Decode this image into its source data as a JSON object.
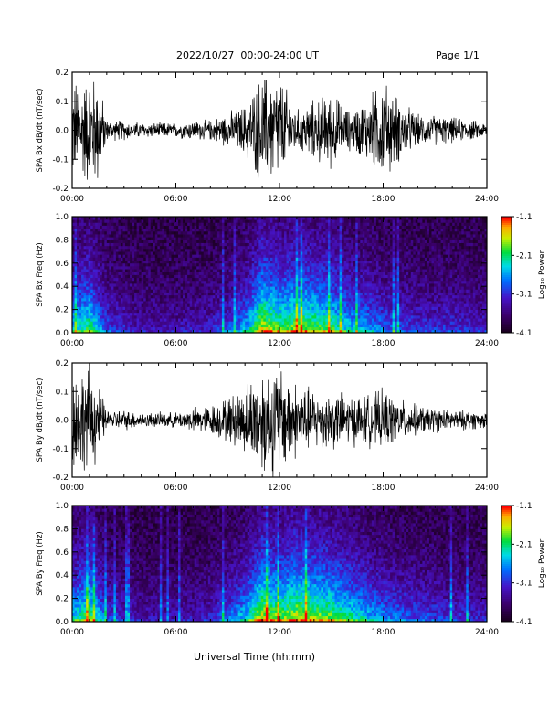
{
  "header": {
    "title": "2022/10/27  00:00-24:00 UT",
    "page": "Page 1/1"
  },
  "footer": {
    "xlabel": "Universal Time (hh:mm)"
  },
  "colors": {
    "trace": "#000000",
    "background": "#ffffff"
  },
  "chart_data": [
    {
      "type": "line",
      "ylabel": "SPA Bx dB/dt (nT/sec)",
      "ylim": [
        -0.2,
        0.2
      ],
      "y_ticks": [
        "-0.2",
        "-0.1",
        "0.0",
        "0.1",
        "0.2"
      ],
      "x_ticks": [
        "00:00",
        "06:00",
        "12:00",
        "18:00",
        "24:00"
      ],
      "xlim_hours": [
        0,
        24
      ],
      "envelope": {
        "hours": [
          0,
          0.5,
          1,
          1.5,
          2,
          3,
          4,
          5,
          6,
          7,
          8,
          9,
          10,
          11,
          12,
          13,
          14,
          15,
          16,
          17,
          18,
          19,
          20,
          21,
          22,
          23,
          24
        ],
        "amplitude": [
          0.2,
          0.2,
          0.22,
          0.22,
          0.04,
          0.04,
          0.03,
          0.03,
          0.03,
          0.04,
          0.04,
          0.07,
          0.1,
          0.22,
          0.22,
          0.08,
          0.12,
          0.15,
          0.08,
          0.12,
          0.2,
          0.12,
          0.06,
          0.06,
          0.05,
          0.04,
          0.03
        ]
      }
    },
    {
      "type": "heatmap",
      "ylabel": "SPA Bx Freq (Hz)",
      "ylim": [
        0.0,
        1.0
      ],
      "y_ticks": [
        "0.0",
        "0.2",
        "0.4",
        "0.6",
        "0.8",
        "1.0"
      ],
      "x_ticks": [
        "00:00",
        "06:00",
        "12:00",
        "18:00",
        "24:00"
      ],
      "colorbar_label": "Log₁₀ Power",
      "colorbar_ticks": [
        "-1.1",
        "-2.1",
        "-3.1",
        "-4.1"
      ],
      "colorbar_range": [
        -4.1,
        -1.1
      ],
      "activity": {
        "hours": [
          0,
          1,
          2,
          4,
          6,
          8,
          9,
          10,
          11,
          12,
          13,
          14,
          15,
          16,
          17,
          18,
          20,
          22,
          24
        ],
        "level": [
          0.55,
          0.7,
          0.35,
          0.2,
          0.2,
          0.25,
          0.35,
          0.5,
          0.85,
          0.75,
          0.8,
          0.75,
          0.7,
          0.55,
          0.5,
          0.4,
          0.3,
          0.3,
          0.25
        ]
      }
    },
    {
      "type": "line",
      "ylabel": "SPA By dB/dt (nT/sec)",
      "ylim": [
        -0.2,
        0.2
      ],
      "y_ticks": [
        "-0.2",
        "-0.1",
        "0.0",
        "0.1",
        "0.2"
      ],
      "x_ticks": [
        "00:00",
        "06:00",
        "12:00",
        "18:00",
        "24:00"
      ],
      "xlim_hours": [
        0,
        24
      ],
      "envelope": {
        "hours": [
          0,
          0.5,
          1,
          1.5,
          2,
          3,
          4,
          5,
          6,
          7,
          8,
          9,
          10,
          11,
          12,
          13,
          14,
          15,
          16,
          17,
          18,
          19,
          20,
          21,
          22,
          23,
          24
        ],
        "amplitude": [
          0.2,
          0.2,
          0.22,
          0.15,
          0.04,
          0.04,
          0.03,
          0.03,
          0.03,
          0.05,
          0.06,
          0.09,
          0.14,
          0.22,
          0.22,
          0.15,
          0.12,
          0.12,
          0.1,
          0.1,
          0.12,
          0.08,
          0.06,
          0.05,
          0.04,
          0.04,
          0.03
        ]
      }
    },
    {
      "type": "heatmap",
      "ylabel": "SPA By Freq (Hz)",
      "ylim": [
        0.0,
        1.0
      ],
      "y_ticks": [
        "0.0",
        "0.2",
        "0.4",
        "0.6",
        "0.8",
        "1.0"
      ],
      "x_ticks": [
        "00:00",
        "06:00",
        "12:00",
        "18:00",
        "24:00"
      ],
      "colorbar_label": "Log₁₀ Power",
      "colorbar_ticks": [
        "-1.1",
        "-2.1",
        "-3.1",
        "-4.1"
      ],
      "colorbar_range": [
        -4.1,
        -1.1
      ],
      "activity": {
        "hours": [
          0,
          1,
          2,
          4,
          6,
          8,
          9,
          10,
          11,
          12,
          13,
          14,
          15,
          16,
          17,
          18,
          20,
          22,
          24
        ],
        "level": [
          0.55,
          0.75,
          0.35,
          0.2,
          0.2,
          0.25,
          0.4,
          0.55,
          0.85,
          0.75,
          0.85,
          0.8,
          0.75,
          0.65,
          0.55,
          0.45,
          0.35,
          0.3,
          0.25
        ]
      }
    }
  ]
}
